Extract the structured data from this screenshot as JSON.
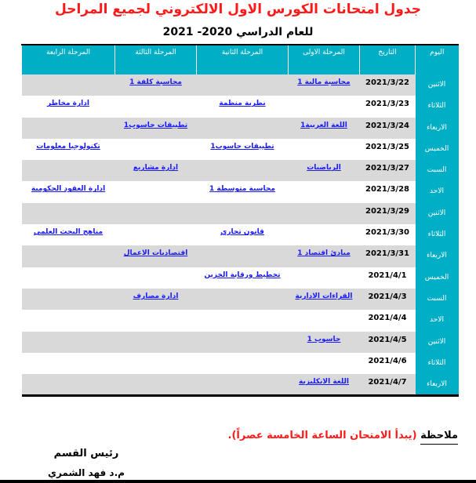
{
  "title": "جدول امتحانات الكورس الاول الالكتروني لجميع المراحل",
  "subtitle": "للعام الدراسي 2020- 2021",
  "colors": {
    "header": "#00aec6",
    "title": "#ff1a1a",
    "row_alt": "#d9d9d9",
    "link": "#1a1aff"
  },
  "headers": [
    "اليوم",
    "التاريخ",
    "المرحلة الاولى",
    "المرحلة الثانية",
    "المرحلة الثالثة",
    "المرحلة الرابعة"
  ],
  "rows": [
    {
      "day": "الاثنين",
      "date": "2021/3/22",
      "s1": "محاسبة مالية 1",
      "s2": "",
      "s3": "محاسبة كلفة 1",
      "s4": ""
    },
    {
      "day": "الثلاثاء",
      "date": "2021/3/23",
      "s1": "",
      "s2": "نظرية منظمة",
      "s3": "",
      "s4": "ادارة مخاطر"
    },
    {
      "day": "الاربعاء",
      "date": "2021/3/24",
      "s1": "اللغة العربية1",
      "s2": "",
      "s3": "تطبيقات حاسوب1",
      "s4": ""
    },
    {
      "day": "الخميس",
      "date": "2021/3/25",
      "s1": "",
      "s2": "تطبيقات حاسوب1",
      "s3": "",
      "s4": "تكنولوجيا معلومات"
    },
    {
      "day": "السبت",
      "date": "2021/3/27",
      "s1": "الرياضيات",
      "s2": "",
      "s3": "ادارة مشاريع",
      "s4": ""
    },
    {
      "day": "الاحد",
      "date": "2021/3/28",
      "s1": "",
      "s2": "محاسبة متوسطة 1",
      "s3": "",
      "s4": "ادارة العقود الحكومية"
    },
    {
      "day": "الاثنين",
      "date": "2021/3/29",
      "s1": "",
      "s2": "",
      "s3": "",
      "s4": ""
    },
    {
      "day": "الثلاثاء",
      "date": "2021/3/30",
      "s1": "",
      "s2": "قانون تجاري",
      "s3": "",
      "s4": "مناهج البحث العلمي"
    },
    {
      "day": "الاربعاء",
      "date": "2021/3/31",
      "s1": "مبادئ اقتصاد 1",
      "s2": "",
      "s3": "اقتصاديات الاعمال",
      "s4": ""
    },
    {
      "day": "الخميس",
      "date": "2021/4/1",
      "s1": "",
      "s2": "تخطيط ورقابة الخزين",
      "s3": "",
      "s4": ""
    },
    {
      "day": "السبت",
      "date": "2021/4/3",
      "s1": "القراءات الادارية",
      "s2": "",
      "s3": "ادارة مصارف",
      "s4": ""
    },
    {
      "day": "الاحد",
      "date": "2021/4/4",
      "s1": "",
      "s2": "",
      "s3": "",
      "s4": ""
    },
    {
      "day": "الاثنين",
      "date": "2021/4/5",
      "s1": "حاسوب 1",
      "s2": "",
      "s3": "",
      "s4": ""
    },
    {
      "day": "الثلاثاء",
      "date": "2021/4/6",
      "s1": "",
      "s2": "",
      "s3": "",
      "s4": ""
    },
    {
      "day": "الاربعاء",
      "date": "2021/4/7",
      "s1": "اللغة الانكليزية",
      "s2": "",
      "s3": "",
      "s4": ""
    }
  ],
  "note": {
    "label": "ملاحظة",
    "text": " (يبدأ الامتحان الساعة الخامسة عصراً)."
  },
  "signature": {
    "role": "رئيس القسم",
    "name": "م.د فهد الشمري"
  }
}
